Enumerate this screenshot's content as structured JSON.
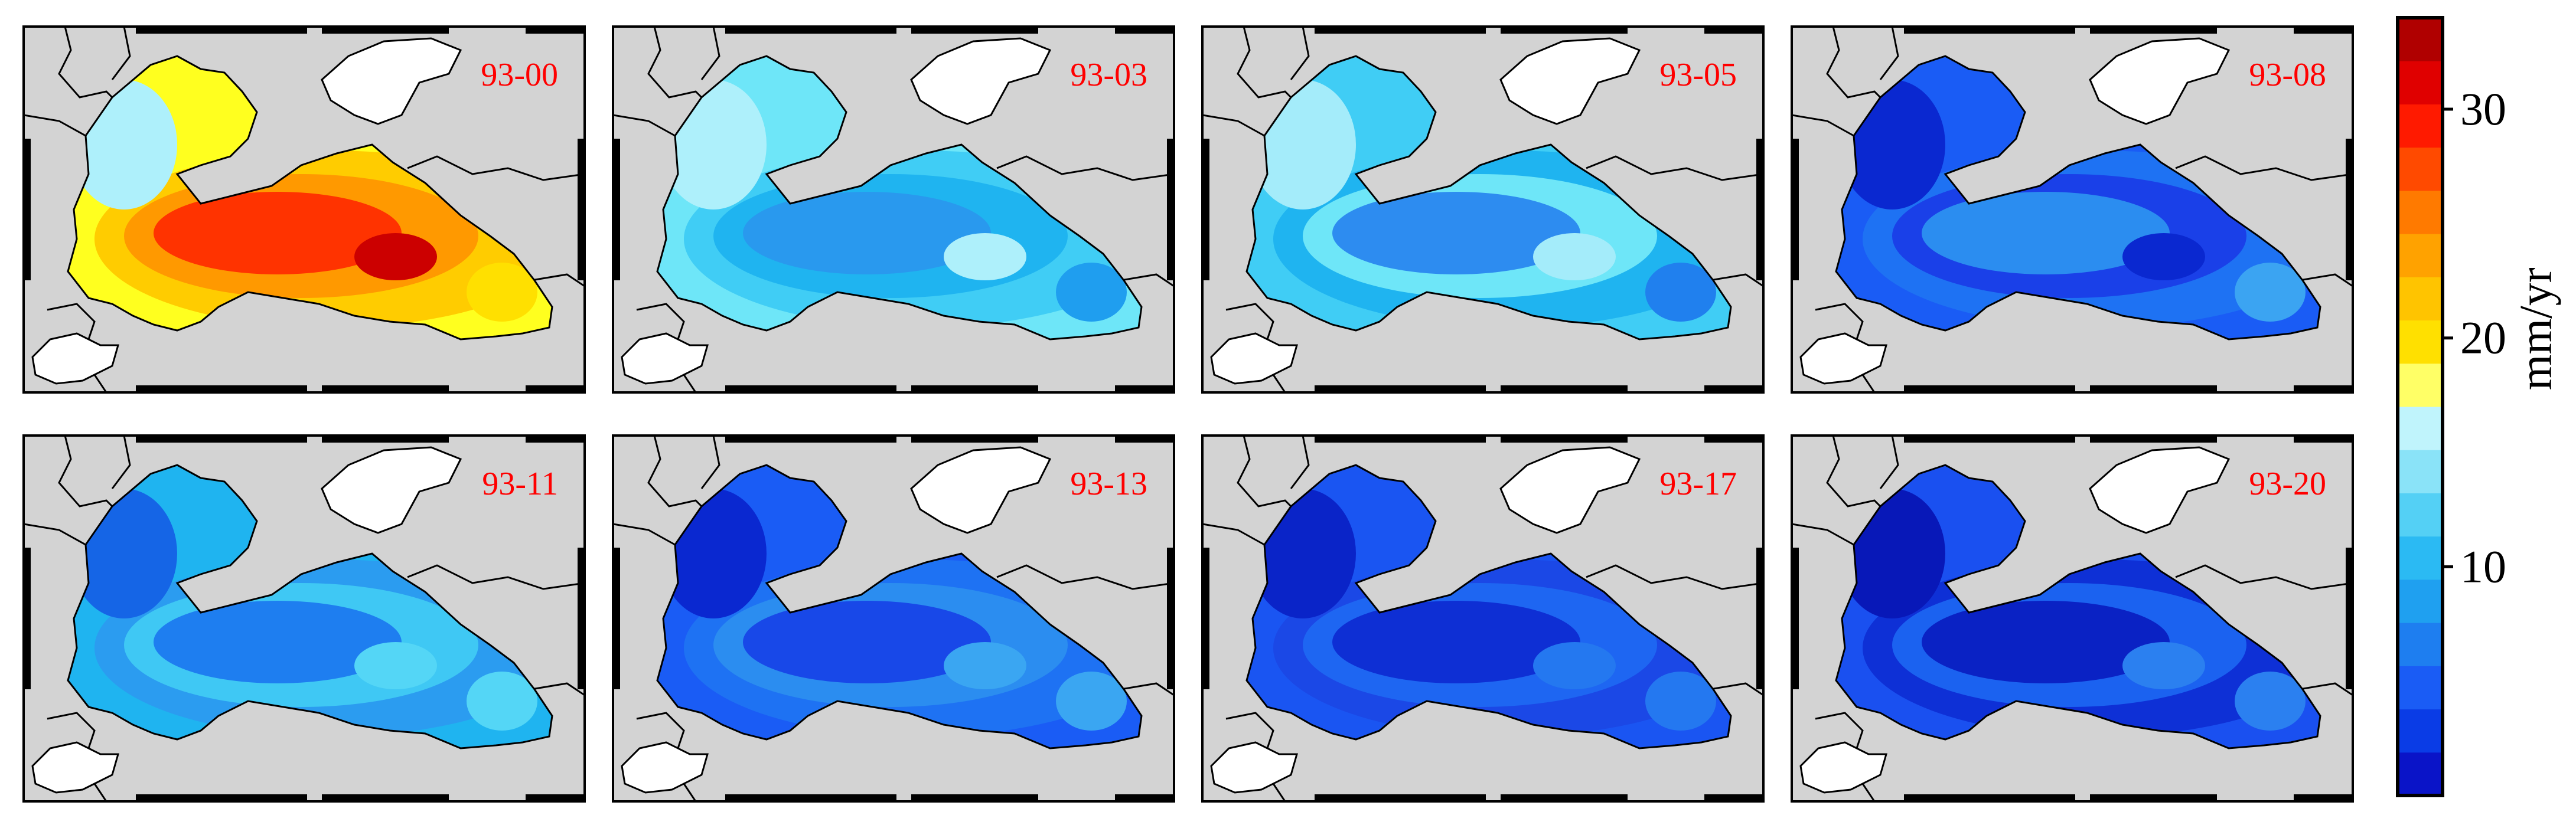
{
  "figure": {
    "panels": [
      {
        "label": "93-00",
        "palette": [
          "#ffff1f",
          "#ffcc00",
          "#ff9900",
          "#ff3300",
          "#cc0000"
        ],
        "spots": [
          "#aef0fb",
          "#ffe000"
        ]
      },
      {
        "label": "93-03",
        "palette": [
          "#6ee6f8",
          "#40cdf5",
          "#1fb4f0",
          "#2999ee",
          "#aef0fb"
        ],
        "spots": [
          "#aef0fb",
          "#1f9eef"
        ]
      },
      {
        "label": "93-05",
        "palette": [
          "#40cdf5",
          "#1fb4f0",
          "#6ee6f8",
          "#2d8cf0",
          "#a4ecfa"
        ],
        "spots": [
          "#a4ecfa",
          "#2080ee"
        ]
      },
      {
        "label": "93-08",
        "palette": [
          "#1a5cf5",
          "#1e72f3",
          "#1a40e8",
          "#2b8df0",
          "#0a28d0"
        ],
        "spots": [
          "#0a28d0",
          "#3ba4f2"
        ]
      },
      {
        "label": "93-11",
        "palette": [
          "#1fb4f0",
          "#2b9cf0",
          "#3fc8f4",
          "#1e7ef0",
          "#54d6f6"
        ],
        "spots": [
          "#1565e6",
          "#54d6f6"
        ]
      },
      {
        "label": "93-13",
        "palette": [
          "#1a5cf5",
          "#1e72f3",
          "#2b8df0",
          "#1848e8",
          "#3aa6f2"
        ],
        "spots": [
          "#0a28d0",
          "#3aa6f2"
        ]
      },
      {
        "label": "93-17",
        "palette": [
          "#1a55f2",
          "#1b48e6",
          "#1e66f2",
          "#0e2fd4",
          "#2478f0"
        ],
        "spots": [
          "#0a24c8",
          "#2478f0"
        ]
      },
      {
        "label": "93-20",
        "palette": [
          "#1a50f0",
          "#0e30d6",
          "#1b62f0",
          "#0a22c4",
          "#2b80f0"
        ],
        "spots": [
          "#0818b8",
          "#2b80f0"
        ]
      }
    ],
    "label_color": "#ff0000",
    "land_color": "#d3d3d3",
    "unshown_land_color": "#ffffff"
  },
  "colorbar": {
    "unit": "mm/yr",
    "ticks": [
      10,
      20,
      30
    ],
    "range": [
      0,
      34
    ],
    "colors": [
      "#0a14c8",
      "#0a3ce6",
      "#1a5cf5",
      "#1e7ef0",
      "#1fa0f0",
      "#2bbaf3",
      "#54d0f5",
      "#8ae3f8",
      "#c0f4fc",
      "#ffff66",
      "#ffe000",
      "#ffc400",
      "#ffa200",
      "#ff7a00",
      "#ff4a00",
      "#ff1a00",
      "#e00000",
      "#b00000"
    ]
  }
}
